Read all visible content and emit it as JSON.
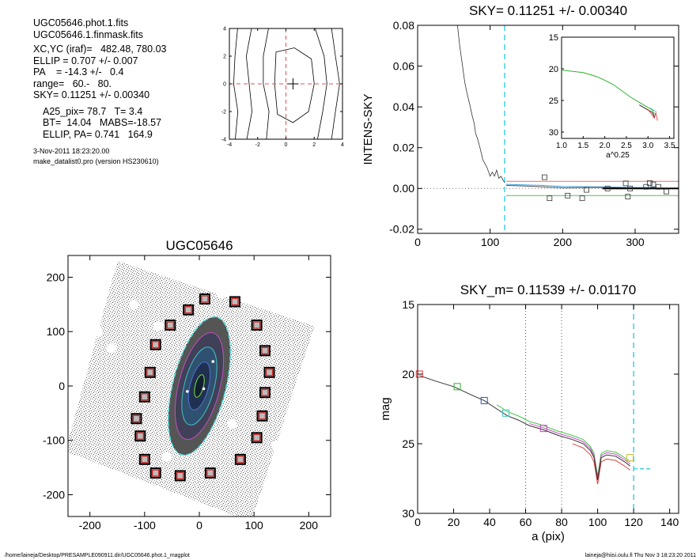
{
  "info": {
    "file1": "UGC05646.phot.1.fits",
    "file2": "UGC05646.1.finmask.fits",
    "xcyc": "XC,YC (iraf)=   482.48, 780.03",
    "ellip": "ELLIP = 0.707 +/- 0.007",
    "pa": "PA    = -14.3 +/-   0.4",
    "range": "range=   60.-   80.",
    "sky": "SKY= 0.11251 +/- 0.00340",
    "a25": "A25_pix= 78.7   T= 3.4",
    "bt": "BT=  14.04   MABS=-18.57",
    "ellippa": "ELLIP, PA= 0.741   164.9",
    "date": "3-Nov-2011 18:23:20.00",
    "prog": "make_datalist0.pro (version HS230610)"
  },
  "footer": {
    "left": "/home/laineja/Desktop/PRESAMPLE090911.dir/UGC05646.phot.1_magplot",
    "right": "laineja@hiisi.oulu.fi  Thu Nov  3 18:23:20 2011"
  },
  "chart_data": [
    {
      "id": "contour",
      "type": "contour",
      "xlim": [
        -4,
        4
      ],
      "ylim": [
        -4,
        4
      ],
      "xticks": [
        "-4",
        "-2",
        "0",
        "2",
        "4"
      ],
      "yticks": [
        "-4",
        "-2",
        "0",
        "2",
        "4"
      ],
      "center": [
        0.5,
        0.0
      ]
    },
    {
      "id": "sky",
      "type": "scatter",
      "title": "SKY= 0.11251 +/- 0.00340",
      "ylabel": "INTENS-SKY",
      "xlim": [
        0,
        360
      ],
      "ylim": [
        -0.022,
        0.08
      ],
      "xticks": [
        "0",
        "100",
        "200",
        "300"
      ],
      "yticks": [
        "-0.02",
        "0.00",
        "0.02",
        "0.04",
        "0.06",
        "0.08"
      ],
      "profile": [
        [
          55,
          0.08
        ],
        [
          58,
          0.07
        ],
        [
          62,
          0.06
        ],
        [
          65,
          0.052
        ],
        [
          68,
          0.047
        ],
        [
          72,
          0.041
        ],
        [
          75,
          0.036
        ],
        [
          78,
          0.032
        ],
        [
          80,
          0.027
        ],
        [
          83,
          0.024
        ],
        [
          86,
          0.02
        ],
        [
          88,
          0.017
        ],
        [
          90,
          0.014
        ],
        [
          93,
          0.012
        ],
        [
          96,
          0.01
        ],
        [
          98,
          0.008
        ],
        [
          100,
          0.006
        ],
        [
          103,
          0.008
        ],
        [
          106,
          0.006
        ],
        [
          109,
          0.009
        ],
        [
          112,
          0.005
        ],
        [
          115,
          0.006
        ],
        [
          118,
          0.004
        ],
        [
          120,
          0.003
        ]
      ],
      "boxes": [
        [
          175,
          0.0055
        ],
        [
          182,
          -0.0048
        ],
        [
          207,
          -0.0035
        ],
        [
          227,
          -0.0048
        ],
        [
          233,
          -0.0007
        ],
        [
          262,
          0.0
        ],
        [
          287,
          0.0025
        ],
        [
          290,
          -0.004
        ],
        [
          293,
          0.0
        ],
        [
          315,
          0.0008
        ],
        [
          320,
          0.0027
        ],
        [
          325,
          0.002
        ],
        [
          332,
          0.0008
        ],
        [
          343,
          -0.0015
        ]
      ],
      "skyline_x": [
        122,
        360
      ],
      "vline_x": 120,
      "inset": {
        "xlabel": "a^0.25",
        "xlim": [
          1.0,
          3.6
        ],
        "ylim": [
          15,
          31
        ],
        "xticks": [
          "1.0",
          "1.5",
          "2.0",
          "2.5",
          "3.0",
          "3.5"
        ],
        "yticks": [
          "15",
          "20",
          "25",
          "30"
        ],
        "curve": [
          [
            1.0,
            20.2
          ],
          [
            1.5,
            20.6
          ],
          [
            1.8,
            21.2
          ],
          [
            2.0,
            21.8
          ],
          [
            2.2,
            22.5
          ],
          [
            2.4,
            23.5
          ],
          [
            2.6,
            24.5
          ],
          [
            2.8,
            25.3
          ],
          [
            3.0,
            26.1
          ],
          [
            3.1,
            26.5
          ],
          [
            3.15,
            27.2
          ]
        ]
      }
    },
    {
      "id": "image",
      "type": "image",
      "title": "UGC05646",
      "xlim": [
        -240,
        240
      ],
      "ylim": [
        -240,
        240
      ],
      "xticks": [
        "-200",
        "-100",
        "0",
        "100",
        "200"
      ],
      "yticks": [
        "-200",
        "-100",
        "0",
        "100",
        "200"
      ],
      "markers": [
        [
          10,
          160
        ],
        [
          -20,
          140
        ],
        [
          -53,
          112
        ],
        [
          -80,
          76
        ],
        [
          -90,
          25
        ],
        [
          -100,
          -20
        ],
        [
          -115,
          -60
        ],
        [
          -108,
          -92
        ],
        [
          -100,
          -135
        ],
        [
          -80,
          -160
        ],
        [
          -35,
          -165
        ],
        [
          20,
          -160
        ],
        [
          75,
          -135
        ],
        [
          105,
          -95
        ],
        [
          115,
          -55
        ],
        [
          120,
          -12
        ],
        [
          128,
          25
        ],
        [
          120,
          65
        ],
        [
          105,
          112
        ],
        [
          65,
          155
        ]
      ],
      "ellipse": {
        "cx": 0,
        "cy": 0,
        "rx": 42,
        "ry": 118,
        "angle": 14.3
      }
    },
    {
      "id": "mag",
      "type": "line",
      "title": "SKY_m=  0.11539 +/- 0.01170",
      "xlabel": "a (pix)",
      "ylabel": "mag",
      "xlim": [
        0,
        145
      ],
      "ylim": [
        30,
        15
      ],
      "xticks": [
        "0",
        "20",
        "40",
        "60",
        "80",
        "100",
        "120",
        "140"
      ],
      "yticks": [
        "15",
        "20",
        "25",
        "30"
      ],
      "profile": [
        [
          1,
          20.1
        ],
        [
          10,
          20.5
        ],
        [
          20,
          20.9
        ],
        [
          30,
          21.5
        ],
        [
          37,
          21.9
        ],
        [
          44,
          22.5
        ],
        [
          50,
          23.0
        ],
        [
          56,
          23.3
        ],
        [
          62,
          23.7
        ],
        [
          70,
          24.0
        ],
        [
          78,
          24.4
        ],
        [
          86,
          24.7
        ],
        [
          92,
          25.0
        ],
        [
          96,
          25.5
        ],
        [
          98,
          26.0
        ],
        [
          100,
          27.6
        ],
        [
          102,
          26.0
        ],
        [
          105,
          25.8
        ],
        [
          110,
          25.9
        ],
        [
          115,
          26.3
        ],
        [
          118,
          26.6
        ]
      ],
      "boxes": [
        [
          1,
          20.0,
          "#e03030"
        ],
        [
          22,
          20.9,
          "#30b030"
        ],
        [
          37,
          21.9,
          "#3050c0"
        ],
        [
          49,
          22.8,
          "#40c0c0"
        ],
        [
          70,
          23.9,
          "#c040c0"
        ],
        [
          118,
          26.0,
          "#c0c030"
        ]
      ],
      "vlines_dotted": [
        60,
        80
      ],
      "vline_cyan": 120,
      "sky_seg": [
        [
          120,
          26.8
        ],
        [
          130,
          26.8
        ]
      ]
    }
  ]
}
